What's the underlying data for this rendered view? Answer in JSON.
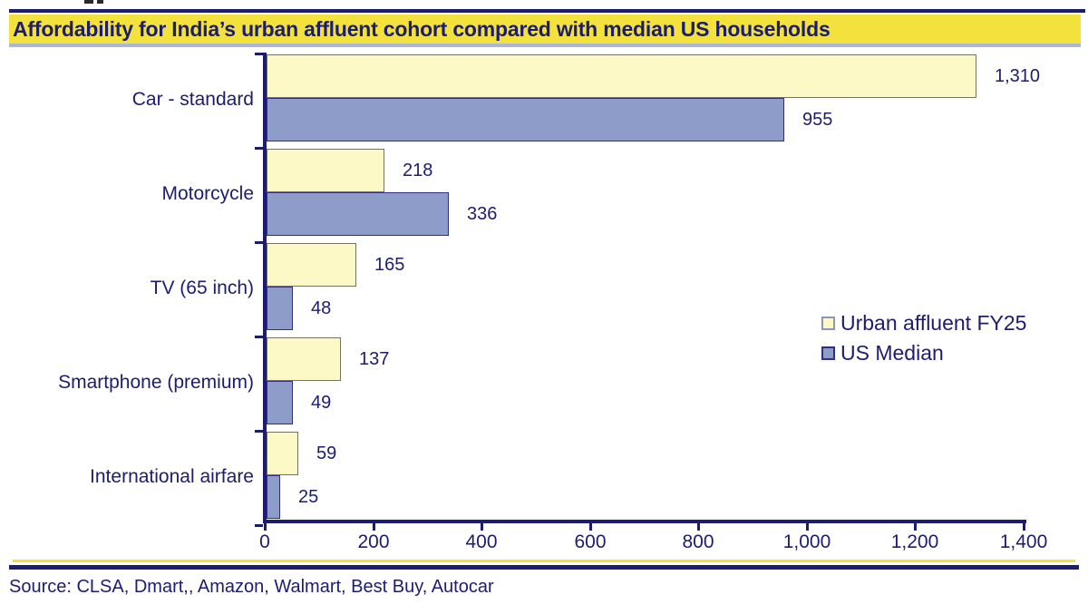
{
  "header": {
    "title": "Affordability for India’s urban affluent cohort compared with median US households"
  },
  "footer": {
    "source": "Source: CLSA, Dmart,, Amazon, Walmart, Best Buy, Autocar"
  },
  "colors": {
    "navy_text": "#1c1c70",
    "title_background": "#f3e23d",
    "title_underline": "#a9b7d9",
    "series_yellow_fill": "#fcf9c6",
    "series_yellow_border": "#73735f",
    "series_yellow_legend_border": "#8a97b8",
    "series_blue_fill": "#8e9cca",
    "series_blue_border": "#30307c"
  },
  "chart_data": {
    "type": "bar",
    "orientation": "horizontal",
    "title": "Affordability for India’s urban affluent cohort compared with median US households",
    "categories": [
      "Car - standard",
      "Motorcycle",
      "TV (65 inch)",
      "Smartphone (premium)",
      "International airfare"
    ],
    "series": [
      {
        "name": "Urban affluent FY25",
        "fill": "#fcf9c6",
        "border": "#73735f",
        "values": [
          1310,
          218,
          165,
          137,
          59
        ],
        "value_labels": [
          "1,310",
          "218",
          "165",
          "137",
          "59"
        ]
      },
      {
        "name": "US Median",
        "fill": "#8e9cca",
        "border": "#30307c",
        "values": [
          955,
          336,
          48,
          49,
          25
        ],
        "value_labels": [
          "955",
          "336",
          "48",
          "49",
          "25"
        ]
      }
    ],
    "xlim": [
      0,
      1400
    ],
    "x_ticks": [
      0,
      200,
      400,
      600,
      800,
      1000,
      1200,
      1400
    ],
    "x_tick_labels": [
      "0",
      "200",
      "400",
      "600",
      "800",
      "1,000",
      "1,200",
      "1,400"
    ],
    "xlabel": "",
    "ylabel": "",
    "grid": false,
    "legend_position": "right-middle",
    "data_labels": true
  }
}
